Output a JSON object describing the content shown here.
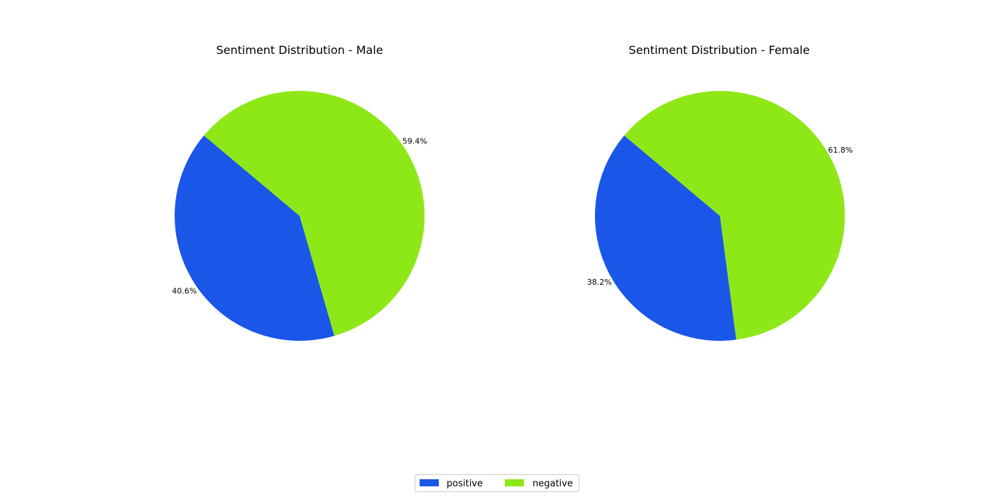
{
  "chart_data": [
    {
      "type": "pie",
      "title": "Sentiment Distribution - Male",
      "categories": [
        "positive",
        "negative"
      ],
      "values": [
        40.6,
        59.4
      ],
      "labels": [
        "40.6%",
        "59.4%"
      ],
      "colors": [
        "#1a56e8",
        "#8ee818"
      ],
      "start_angle_deg": 140,
      "legend": "bottom-center"
    },
    {
      "type": "pie",
      "title": "Sentiment Distribution - Female",
      "categories": [
        "positive",
        "negative"
      ],
      "values": [
        38.2,
        61.8
      ],
      "labels": [
        "38.2%",
        "61.8%"
      ],
      "colors": [
        "#1a56e8",
        "#8ee818"
      ],
      "start_angle_deg": 140,
      "legend": "bottom-center"
    }
  ],
  "legend": {
    "items": [
      {
        "label": "positive",
        "color": "#1a56e8"
      },
      {
        "label": "negative",
        "color": "#8ee818"
      }
    ]
  }
}
